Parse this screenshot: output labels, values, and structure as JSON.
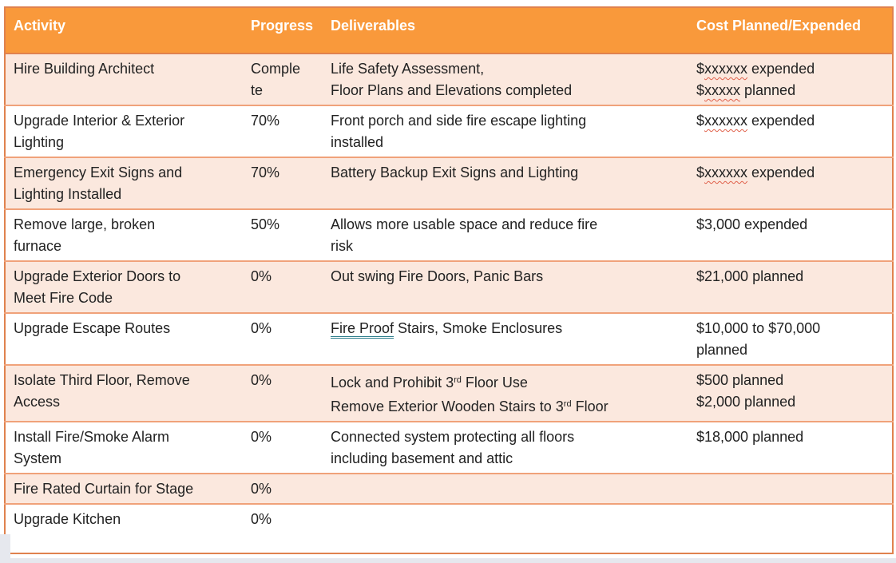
{
  "colors": {
    "header_bg": "#F9993B",
    "header_text": "#FFFFFF",
    "row_alt_bg": "#FBE8DE",
    "row_bg": "#FFFFFF",
    "border_outer": "#E0824E",
    "border_inner": "#F0A27A",
    "text": "#222222",
    "spellcheck_red": "#E0604A",
    "grammar_teal": "#2E7E8C",
    "page_edge_gray": "#E6E8EE",
    "page_bg": "#FFFFFF"
  },
  "table": {
    "columns": [
      {
        "label": "Activity"
      },
      {
        "label": "Progress"
      },
      {
        "label": "Deliverables"
      },
      {
        "label": "Cost Planned/Expended"
      }
    ],
    "rows": [
      {
        "activity": "Hire Building Architect",
        "progress": "Complete",
        "deliverables": [
          {
            "t": "Life Safety Assessment,"
          },
          {
            "br": true
          },
          {
            "t": "Floor Plans and Elevations completed"
          }
        ],
        "cost": [
          {
            "t": "$"
          },
          {
            "t": "xxxxxx",
            "s": "misspelled"
          },
          {
            "t": " expended"
          },
          {
            "br": true
          },
          {
            "t": "$"
          },
          {
            "t": "xxxxx",
            "s": "misspelled"
          },
          {
            "t": " planned"
          }
        ]
      },
      {
        "activity": "Upgrade Interior & Exterior Lighting",
        "progress": "70%",
        "deliverables": [
          {
            "t": "Front porch and side fire escape lighting installed"
          }
        ],
        "cost": [
          {
            "t": "$"
          },
          {
            "t": "xxxxxx",
            "s": "misspelled"
          },
          {
            "t": " expended"
          }
        ]
      },
      {
        "activity": "Emergency Exit Signs and Lighting Installed",
        "progress": "70%",
        "deliverables": [
          {
            "t": "Battery Backup Exit Signs and Lighting"
          }
        ],
        "cost": [
          {
            "t": "$"
          },
          {
            "t": "xxxxxx",
            "s": "misspelled"
          },
          {
            "t": " expended"
          }
        ]
      },
      {
        "activity": "Remove large, broken furnace",
        "progress": "50%",
        "deliverables": [
          {
            "t": "Allows more usable space and reduce fire risk"
          }
        ],
        "cost": [
          {
            "t": "$3,000 expended"
          }
        ]
      },
      {
        "activity": "Upgrade Exterior Doors to Meet Fire Code",
        "progress": "0%",
        "deliverables": [
          {
            "t": "Out swing Fire Doors, Panic Bars"
          }
        ],
        "cost": [
          {
            "t": "$21,000 planned"
          }
        ]
      },
      {
        "activity": "Upgrade Escape Routes",
        "progress": "0%",
        "deliverables": [
          {
            "t": "Fire Proof",
            "s": "double-underline"
          },
          {
            "t": " Stairs, Smoke Enclosures"
          }
        ],
        "cost": [
          {
            "t": "$10,000 to $70,000 planned"
          }
        ]
      },
      {
        "activity": "Isolate Third Floor, Remove Access",
        "progress": "0%",
        "deliverables": [
          {
            "t": "Lock and Prohibit 3"
          },
          {
            "t": "rd",
            "s": "superscript"
          },
          {
            "t": " Floor Use"
          },
          {
            "br": true
          },
          {
            "t": "Remove Exterior Wooden Stairs to 3"
          },
          {
            "t": "rd",
            "s": "superscript"
          },
          {
            "t": " Floor"
          }
        ],
        "cost": [
          {
            "t": "$500 planned"
          },
          {
            "br": true
          },
          {
            "t": "$2,000 planned"
          }
        ]
      },
      {
        "activity": "Install Fire/Smoke Alarm System",
        "progress": "0%",
        "deliverables": [
          {
            "t": "Connected system protecting all floors including basement and attic"
          }
        ],
        "cost": [
          {
            "t": "$18,000 planned"
          }
        ]
      },
      {
        "activity": "Fire Rated Curtain for Stage",
        "progress": "0%",
        "deliverables": [],
        "cost": []
      },
      {
        "activity": "Upgrade Kitchen",
        "progress": "0%",
        "deliverables": [],
        "cost": []
      }
    ]
  }
}
